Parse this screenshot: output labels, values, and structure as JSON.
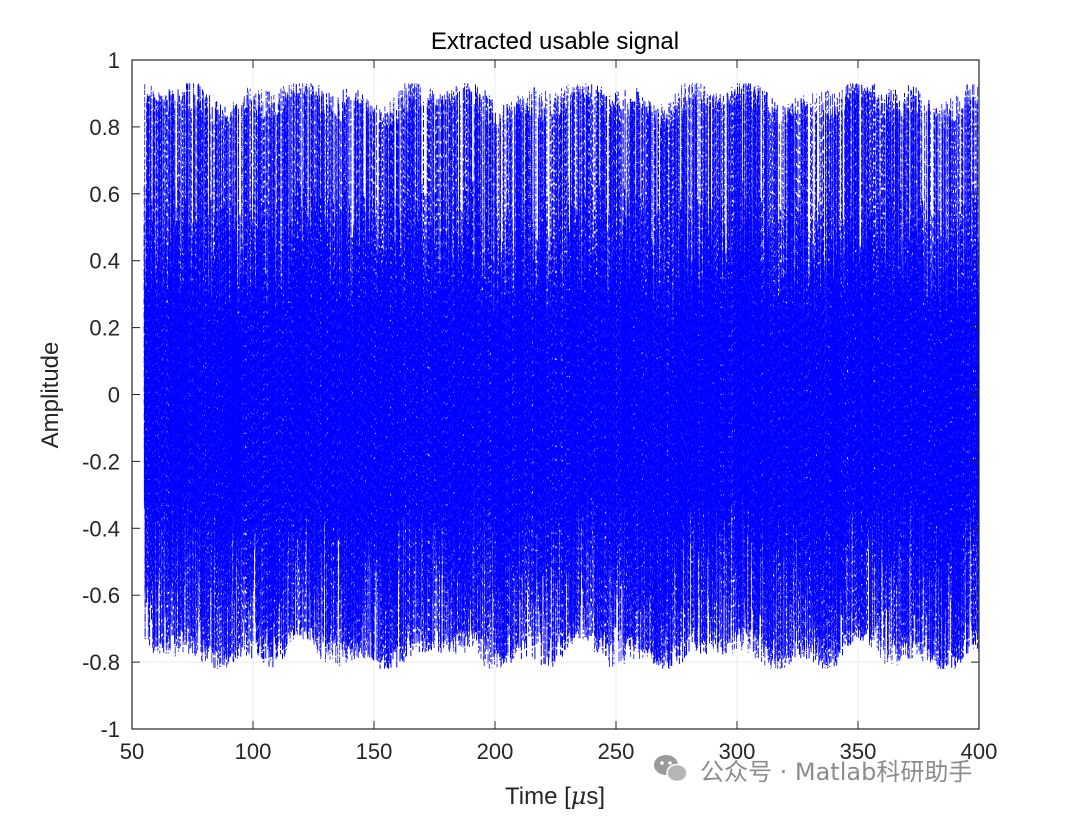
{
  "chart_data": {
    "type": "line",
    "title": "Extracted usable signal",
    "xlabel_prefix": "Time [",
    "xlabel_mu": "μ",
    "xlabel_suffix": "s]",
    "ylabel": "Amplitude",
    "xlim": [
      50,
      400
    ],
    "ylim": [
      -1,
      1
    ],
    "xticks": [
      50,
      100,
      150,
      200,
      250,
      300,
      350,
      400
    ],
    "yticks": [
      -1,
      -0.8,
      -0.6,
      -0.4,
      -0.2,
      0,
      0.2,
      0.4,
      0.6,
      0.8,
      1
    ],
    "grid": true,
    "line_color": "#0000ff",
    "line_style": "dash-dot",
    "signal_x_range": [
      55,
      400
    ],
    "amplitude_upper_envelope": 0.9,
    "amplitude_lower_envelope": -0.78,
    "dense_band_upper": 0.6,
    "dense_band_lower": -0.73
  },
  "watermark": {
    "icon": "wechat-icon",
    "text": "公众号 · Matlab科研助手"
  }
}
